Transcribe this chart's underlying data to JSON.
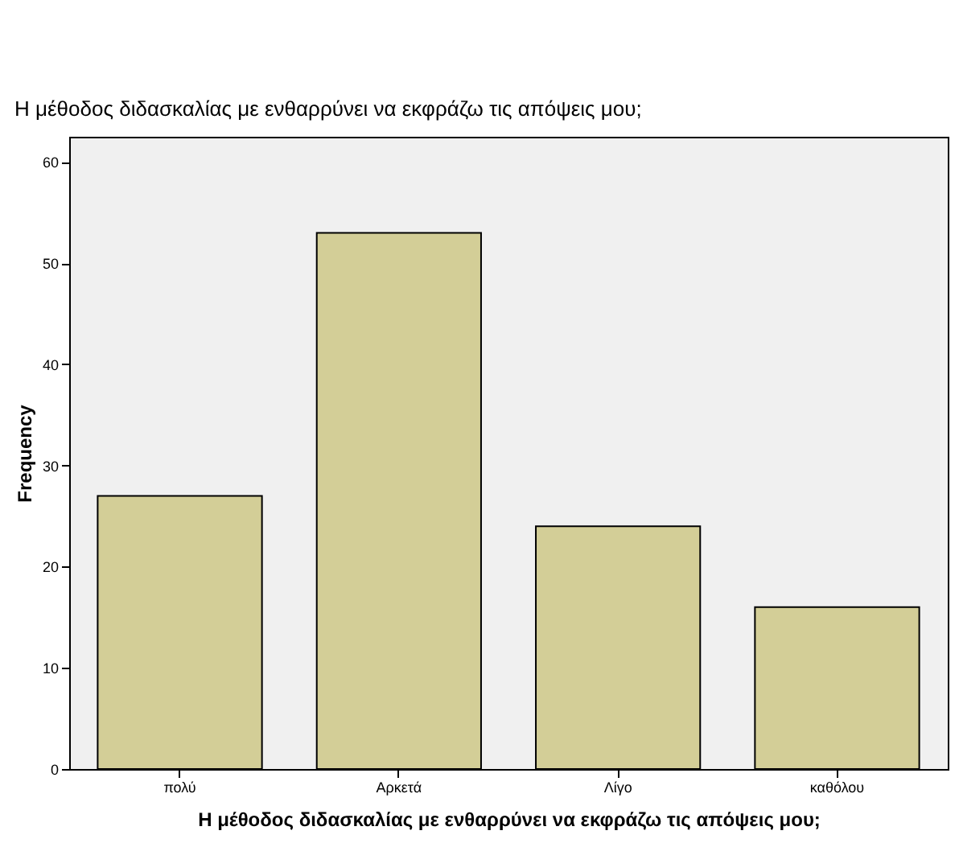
{
  "chart_data": {
    "type": "bar",
    "title": "Η μέθοδος διδασκαλίας με ενθαρρύνει να εκφράζω τις απόψεις μου;",
    "xlabel": "Η μέθοδος διδασκαλίας με ενθαρρύνει να εκφράζω τις απόψεις μου;",
    "ylabel": "Frequency",
    "categories": [
      "πολύ",
      "Αρκετά",
      "Λίγο",
      "καθόλου"
    ],
    "values": [
      27,
      53,
      24,
      16
    ],
    "color": "#d3ce97",
    "ylim": [
      0,
      62.5
    ],
    "yticks": [
      0,
      10,
      20,
      30,
      40,
      50,
      60
    ],
    "grid": false
  }
}
